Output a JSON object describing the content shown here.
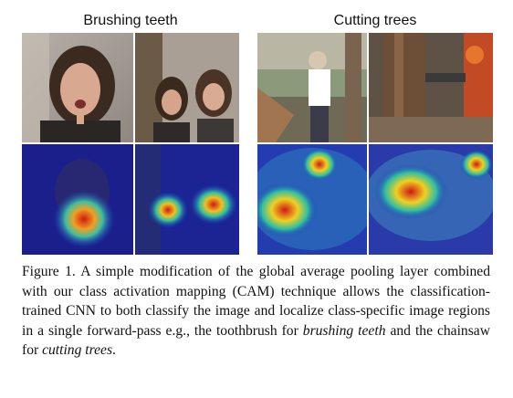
{
  "groups": [
    {
      "title": "Brushing teeth"
    },
    {
      "title": "Cutting trees"
    }
  ],
  "caption": {
    "label": "Figure 1.",
    "text_a": "A simple modification of the global average pooling layer combined with our class activation mapping (CAM) technique allows the classification-trained CNN to both classify the image and localize class-specific image regions in a single forward-pass e.g., the toothbrush for",
    "italic_1": "brushing teeth",
    "text_b": "and the chainsaw for",
    "italic_2": "cutting trees",
    "text_c": "."
  },
  "colors": {
    "heat_hot": "#d01818",
    "heat_warm": "#f0d020",
    "heat_mid": "#30c0a0",
    "heat_cool": "#1a38c0",
    "heat_bg": "#1a1f8c"
  }
}
